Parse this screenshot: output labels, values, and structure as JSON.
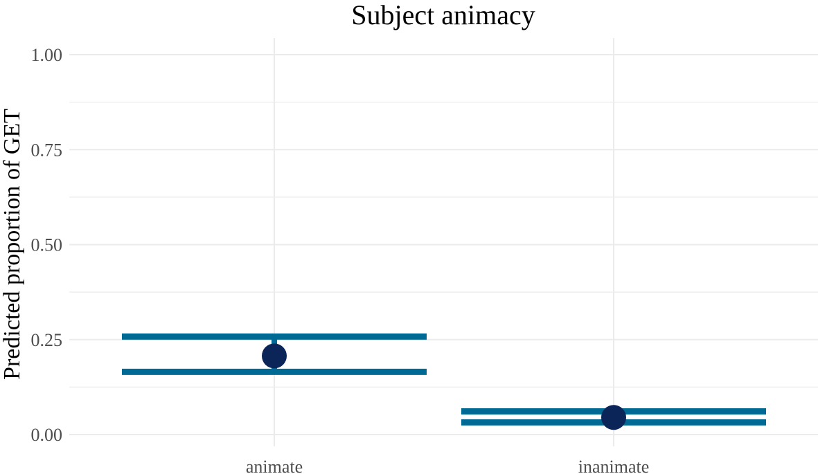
{
  "chart_data": {
    "type": "errorbar",
    "title": "Subject animacy",
    "xlabel": "",
    "ylabel": "Predicted proportion of GET",
    "categories": [
      "animate",
      "inanimate"
    ],
    "series": [
      {
        "values": [
          0.207,
          0.045
        ],
        "lower": [
          0.165,
          0.032
        ],
        "upper": [
          0.258,
          0.061
        ]
      }
    ],
    "ylim": [
      0,
      1
    ],
    "yticks": [
      "0.00",
      "0.25",
      "0.50",
      "0.75",
      "1.00"
    ],
    "grid": true,
    "legend": "none",
    "colors": {
      "errorbar": "#006994",
      "point": "#0b2559",
      "grid": "#ebebeb",
      "tick_text": "#4d4d4d"
    }
  }
}
